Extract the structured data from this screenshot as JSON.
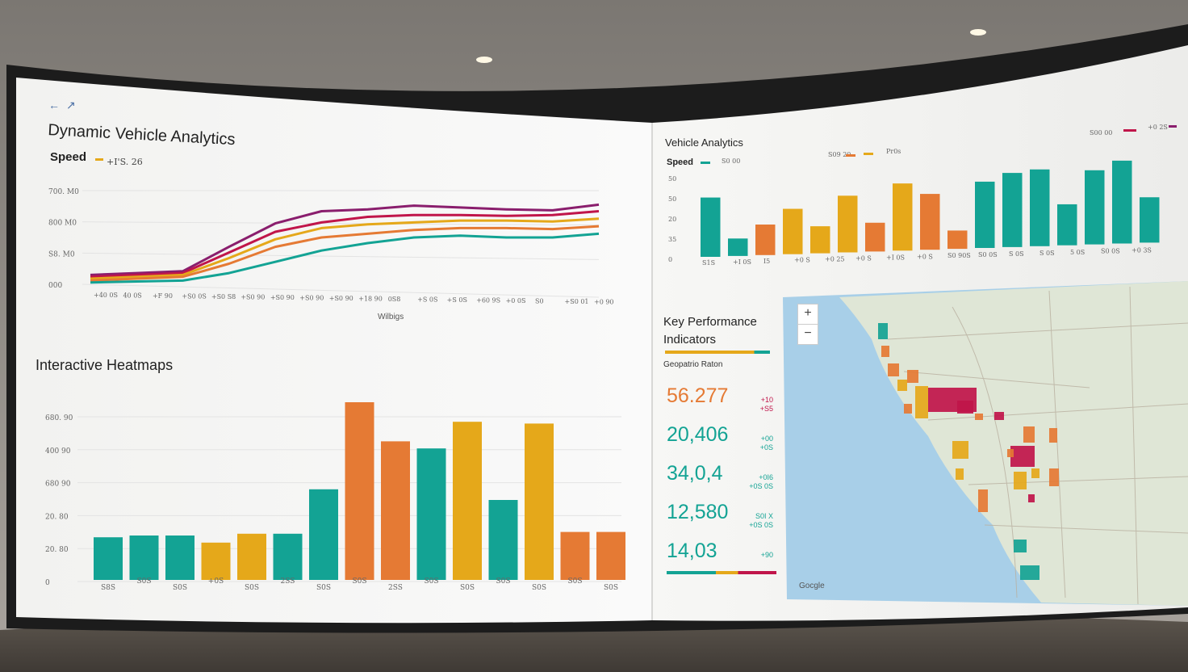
{
  "colors": {
    "teal": "#13a394",
    "orange": "#e57a34",
    "gold": "#e5a81a",
    "crimson": "#c0154a",
    "purple": "#8a1e6d"
  },
  "left_top": {
    "title": "Dynamic Vehicle Analytics",
    "speed_label": "Speed",
    "speed_value": "+I'S. 26",
    "y_ticks": [
      "700. M0",
      "800 M0",
      "S8. M0",
      "000"
    ],
    "x_ticks": [
      "+40 0S",
      "40 0S",
      "+F 90",
      "+S0 0S",
      "+S0 S8",
      "+S0 90",
      "+S0 90",
      "+S0 90",
      "+S0 90",
      "+18 90",
      "0S8",
      "+S 0S",
      "+S 0S",
      "+60 9S",
      "+0 0S",
      "S0",
      "+S0 01",
      "+0 90"
    ],
    "x_label": "Wilbigs",
    "nav_back": "←",
    "nav_forward": "↗"
  },
  "left_bottom": {
    "title": "Interactive Heatmaps",
    "y_ticks": [
      "680. 90",
      "400 90",
      "680 90",
      "20. 80",
      "20. 80",
      "0"
    ],
    "x_ticks": [
      "S8S",
      "S0S",
      "S0S",
      "+0S",
      "S0S",
      "2SS",
      "S0S",
      "S0S",
      "2SS",
      "S0S",
      "S0S",
      "S0S",
      "S0S",
      "S0S",
      "S0S"
    ]
  },
  "right_top": {
    "title": "Vehicle Analytics",
    "speed_label": "Speed",
    "legend_a": "S0 00",
    "legend_b": "S09 20",
    "legend_c": "Pr0s",
    "legend_d": "S00 00",
    "legend_e": "+0 2S",
    "y_ticks": [
      "50",
      "50",
      "20",
      "35",
      "0"
    ],
    "x_ticks": [
      "S1S",
      "+I 0S",
      "I5",
      "+0 S",
      "+0 25",
      "+0 S",
      "+I 0S",
      "+0 S",
      "S0 90S",
      "S0 0S",
      "S 0S",
      "S 0S",
      "5 0S",
      "S0 0S",
      "+0 3S"
    ]
  },
  "kpi": {
    "title_line1": "Key Performance",
    "title_line2": "Indicators",
    "subtitle": "Geopatrio Raton",
    "items": [
      {
        "value": "56.277",
        "delta": "+10\n+S5",
        "color": "orange"
      },
      {
        "value": "20,406",
        "delta": "+00\n+0S",
        "color": "teal"
      },
      {
        "value": "34,0,4",
        "delta": "+0I6\n+0S 0S",
        "color": "teal"
      },
      {
        "value": "12,580",
        "delta": "S0I X\n+0S 0S",
        "color": "teal"
      },
      {
        "value": "14,03",
        "delta": "+90",
        "color": "teal"
      }
    ]
  },
  "map": {
    "zoom_in": "+",
    "zoom_out": "−",
    "attribution": "Gocgle"
  },
  "chart_data": [
    {
      "type": "line",
      "title": "Dynamic Vehicle Analytics",
      "xlabel": "Wilbigs",
      "ylabel": "",
      "x": [
        0,
        1,
        2,
        3,
        4,
        5,
        6,
        7,
        8,
        9,
        10,
        11
      ],
      "ylim": [
        0,
        100
      ],
      "series": [
        {
          "color": "#8a1e6d",
          "values": [
            10,
            12,
            14,
            40,
            65,
            78,
            80,
            84,
            82,
            80,
            79,
            85
          ]
        },
        {
          "color": "#c0154a",
          "values": [
            8,
            10,
            12,
            34,
            56,
            66,
            72,
            74,
            74,
            73,
            74,
            78
          ]
        },
        {
          "color": "#e5a81a",
          "values": [
            6,
            8,
            10,
            28,
            48,
            60,
            64,
            66,
            68,
            68,
            67,
            70
          ]
        },
        {
          "color": "#e57a34",
          "values": [
            4,
            6,
            8,
            22,
            40,
            50,
            54,
            58,
            60,
            60,
            59,
            62
          ]
        },
        {
          "color": "#13a394",
          "values": [
            2,
            3,
            4,
            12,
            24,
            36,
            44,
            50,
            52,
            50,
            50,
            54
          ]
        }
      ]
    },
    {
      "type": "bar",
      "title": "Interactive Heatmaps",
      "ylim": [
        0,
        100
      ],
      "values": [
        24,
        25,
        25,
        21,
        26,
        26,
        51,
        100,
        78,
        74,
        89,
        45,
        88,
        27,
        27
      ],
      "colors": [
        "teal",
        "teal",
        "teal",
        "gold",
        "gold",
        "teal",
        "teal",
        "orange",
        "orange",
        "teal",
        "gold",
        "teal",
        "gold",
        "orange",
        "orange"
      ]
    },
    {
      "type": "bar",
      "title": "Vehicle Analytics",
      "ylim": [
        0,
        100
      ],
      "values": [
        68,
        20,
        35,
        52,
        31,
        65,
        33,
        77,
        64,
        21,
        76,
        85,
        88,
        47,
        85,
        95,
        52
      ],
      "colors": [
        "teal",
        "teal",
        "orange",
        "gold",
        "gold",
        "gold",
        "orange",
        "gold",
        "orange",
        "orange",
        "teal",
        "teal",
        "teal",
        "teal",
        "teal",
        "teal",
        "teal"
      ]
    }
  ]
}
